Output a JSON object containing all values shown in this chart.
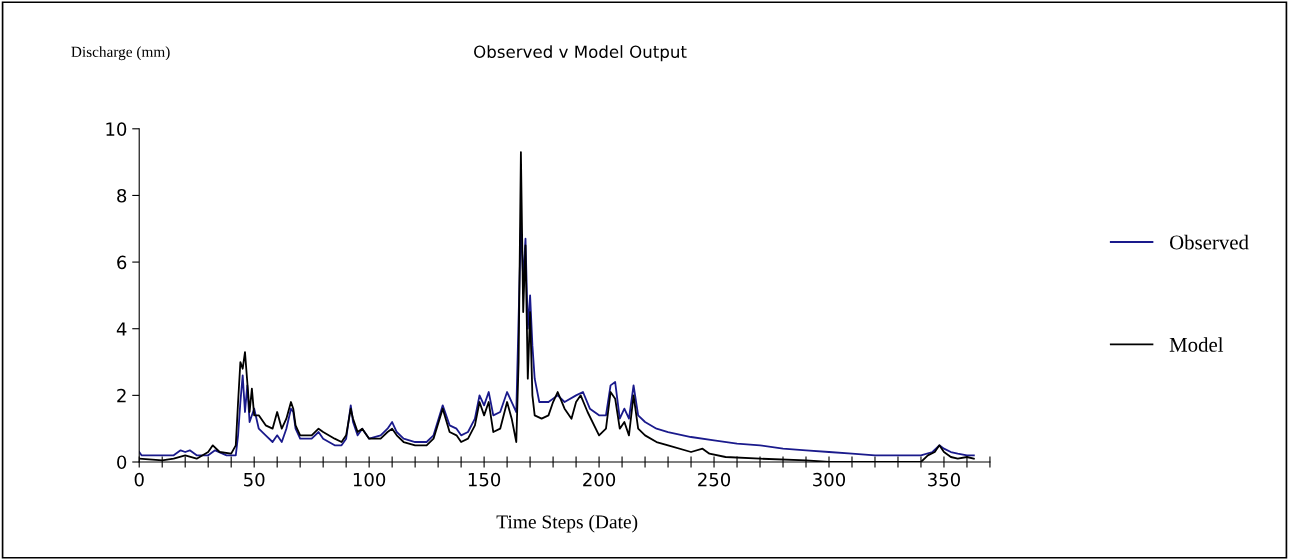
{
  "chart_data": {
    "type": "line",
    "title": "Observed v Model Output",
    "xlabel": "Time Steps (Date)",
    "ylabel": "Discharge (mm)",
    "xlim": [
      0,
      370
    ],
    "ylim": [
      0,
      10
    ],
    "xticks": [
      0,
      {
        "value": 10,
        "label": null
      },
      {
        "value": 20,
        "label": null
      },
      {
        "value": 30,
        "label": null
      },
      {
        "value": 40,
        "label": null
      },
      50,
      {
        "value": 60,
        "label": null
      },
      {
        "value": 70,
        "label": null
      },
      {
        "value": 80,
        "label": null
      },
      {
        "value": 90,
        "label": null
      },
      100,
      {
        "value": 110,
        "label": null
      },
      {
        "value": 120,
        "label": null
      },
      {
        "value": 130,
        "label": null
      },
      {
        "value": 140,
        "label": null
      },
      150,
      {
        "value": 160,
        "label": null
      },
      {
        "value": 170,
        "label": null
      },
      {
        "value": 180,
        "label": null
      },
      {
        "value": 190,
        "label": null
      },
      200,
      {
        "value": 210,
        "label": null
      },
      {
        "value": 220,
        "label": null
      },
      {
        "value": 230,
        "label": null
      },
      {
        "value": 240,
        "label": null
      },
      250,
      {
        "value": 260,
        "label": null
      },
      {
        "value": 270,
        "label": null
      },
      {
        "value": 280,
        "label": null
      },
      {
        "value": 290,
        "label": null
      },
      300,
      {
        "value": 310,
        "label": null
      },
      {
        "value": 320,
        "label": null
      },
      {
        "value": 330,
        "label": null
      },
      {
        "value": 340,
        "label": null
      },
      350,
      {
        "value": 360,
        "label": null
      },
      {
        "value": 370,
        "label": null
      }
    ],
    "yticks": [
      0,
      2,
      4,
      6,
      8,
      10
    ],
    "grid": false,
    "legend": "right",
    "marker": "none",
    "line_style": "solid",
    "series": [
      {
        "name": "Observed",
        "color": "#1a1a8c",
        "x": [
          0,
          1,
          10,
          15,
          18,
          20,
          22,
          25,
          30,
          33,
          38,
          42,
          43,
          44,
          45,
          46,
          47,
          48,
          50,
          52,
          55,
          58,
          60,
          62,
          64,
          66,
          67,
          68,
          70,
          75,
          78,
          80,
          85,
          88,
          90,
          92,
          93,
          95,
          97,
          100,
          105,
          108,
          110,
          112,
          115,
          120,
          125,
          128,
          132,
          135,
          138,
          140,
          143,
          146,
          148,
          150,
          152,
          154,
          157,
          160,
          162,
          164,
          166,
          167,
          168,
          169,
          170,
          171,
          172,
          174,
          178,
          182,
          185,
          190,
          193,
          196,
          200,
          203,
          205,
          207,
          209,
          211,
          213,
          215,
          217,
          220,
          225,
          230,
          240,
          250,
          260,
          270,
          280,
          290,
          300,
          310,
          320,
          330,
          340,
          345,
          348,
          350,
          353,
          356,
          360,
          363
        ],
        "values": [
          0.3,
          0.2,
          0.2,
          0.2,
          0.35,
          0.3,
          0.35,
          0.2,
          0.2,
          0.35,
          0.2,
          0.2,
          0.8,
          1.8,
          2.6,
          1.5,
          2.3,
          1.2,
          1.6,
          1.0,
          0.8,
          0.6,
          0.8,
          0.6,
          1.0,
          1.6,
          1.5,
          1.0,
          0.7,
          0.7,
          0.9,
          0.7,
          0.5,
          0.5,
          0.7,
          1.7,
          1.2,
          0.8,
          1.0,
          0.7,
          0.8,
          1.0,
          1.2,
          0.9,
          0.7,
          0.6,
          0.6,
          0.8,
          1.7,
          1.1,
          1.0,
          0.8,
          0.9,
          1.3,
          2.0,
          1.7,
          2.1,
          1.4,
          1.5,
          2.1,
          1.8,
          1.5,
          7.1,
          5.5,
          6.7,
          4.0,
          5.0,
          3.5,
          2.5,
          1.8,
          1.8,
          2.0,
          1.8,
          2.0,
          2.1,
          1.6,
          1.4,
          1.4,
          2.3,
          2.4,
          1.3,
          1.6,
          1.3,
          2.3,
          1.4,
          1.2,
          1.0,
          0.9,
          0.75,
          0.65,
          0.55,
          0.5,
          0.4,
          0.35,
          0.3,
          0.25,
          0.2,
          0.2,
          0.2,
          0.3,
          0.5,
          0.4,
          0.3,
          0.25,
          0.2,
          0.2
        ]
      },
      {
        "name": "Model",
        "color": "#000000",
        "x": [
          0,
          10,
          15,
          20,
          25,
          30,
          32,
          35,
          40,
          42,
          43,
          44,
          45,
          46,
          47,
          48,
          49,
          50,
          52,
          55,
          58,
          60,
          62,
          64,
          66,
          67,
          68,
          70,
          75,
          78,
          80,
          85,
          88,
          90,
          92,
          93,
          95,
          97,
          100,
          105,
          108,
          110,
          112,
          115,
          120,
          125,
          128,
          132,
          135,
          138,
          140,
          143,
          146,
          148,
          150,
          152,
          154,
          157,
          160,
          162,
          164,
          165,
          166,
          167,
          168,
          169,
          170,
          171,
          172,
          175,
          178,
          180,
          182,
          185,
          188,
          190,
          192,
          195,
          200,
          203,
          205,
          207,
          209,
          211,
          213,
          215,
          217,
          220,
          225,
          230,
          240,
          245,
          248,
          255,
          270,
          290,
          300,
          320,
          340,
          343,
          346,
          348,
          350,
          353,
          356,
          360,
          363
        ],
        "values": [
          0.1,
          0.05,
          0.1,
          0.2,
          0.1,
          0.3,
          0.5,
          0.3,
          0.25,
          0.5,
          1.8,
          3.0,
          2.8,
          3.3,
          2.4,
          1.5,
          2.2,
          1.4,
          1.4,
          1.1,
          1.0,
          1.5,
          1.0,
          1.3,
          1.8,
          1.6,
          1.1,
          0.8,
          0.8,
          1.0,
          0.9,
          0.7,
          0.6,
          0.8,
          1.6,
          1.3,
          0.9,
          1.0,
          0.7,
          0.7,
          0.9,
          1.0,
          0.8,
          0.6,
          0.5,
          0.5,
          0.7,
          1.6,
          0.9,
          0.8,
          0.6,
          0.7,
          1.1,
          1.8,
          1.4,
          1.8,
          0.9,
          1.0,
          1.8,
          1.3,
          0.6,
          3.0,
          9.3,
          4.5,
          6.5,
          2.5,
          4.5,
          2.0,
          1.4,
          1.3,
          1.4,
          1.8,
          2.1,
          1.6,
          1.3,
          1.8,
          2.0,
          1.5,
          0.8,
          1.0,
          2.1,
          1.9,
          1.0,
          1.2,
          0.8,
          2.0,
          1.0,
          0.8,
          0.6,
          0.5,
          0.3,
          0.4,
          0.25,
          0.15,
          0.1,
          0.05,
          0.0,
          0.0,
          0.0,
          0.2,
          0.3,
          0.5,
          0.3,
          0.15,
          0.1,
          0.15,
          0.1
        ]
      }
    ]
  }
}
